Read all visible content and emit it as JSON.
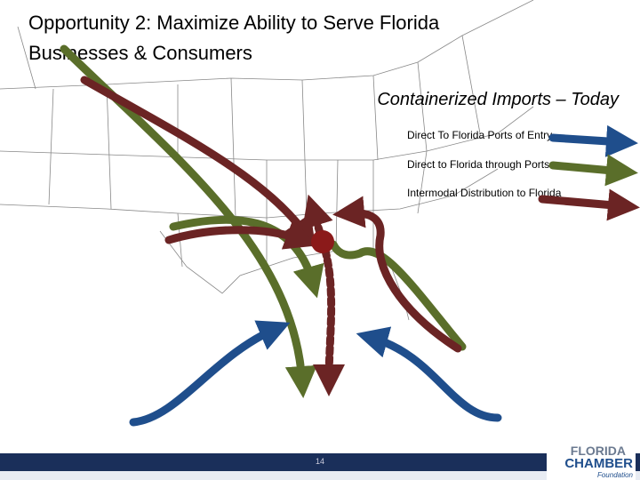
{
  "header": {
    "title_line1": "Opportunity 2:  Maximize Ability to Serve Florida",
    "title_line2": "Businesses & Consumers",
    "subtitle": "Containerized Imports – Today"
  },
  "legend": {
    "items": [
      "Direct To Florida Ports of Entry",
      "Direct to Florida through Ports",
      "Intermodal Distribution to Florida"
    ]
  },
  "footer": {
    "page_number": "14",
    "logo_line1": "FLORIDA",
    "logo_line2": "CHAMBER",
    "logo_line3": "Foundation"
  }
}
